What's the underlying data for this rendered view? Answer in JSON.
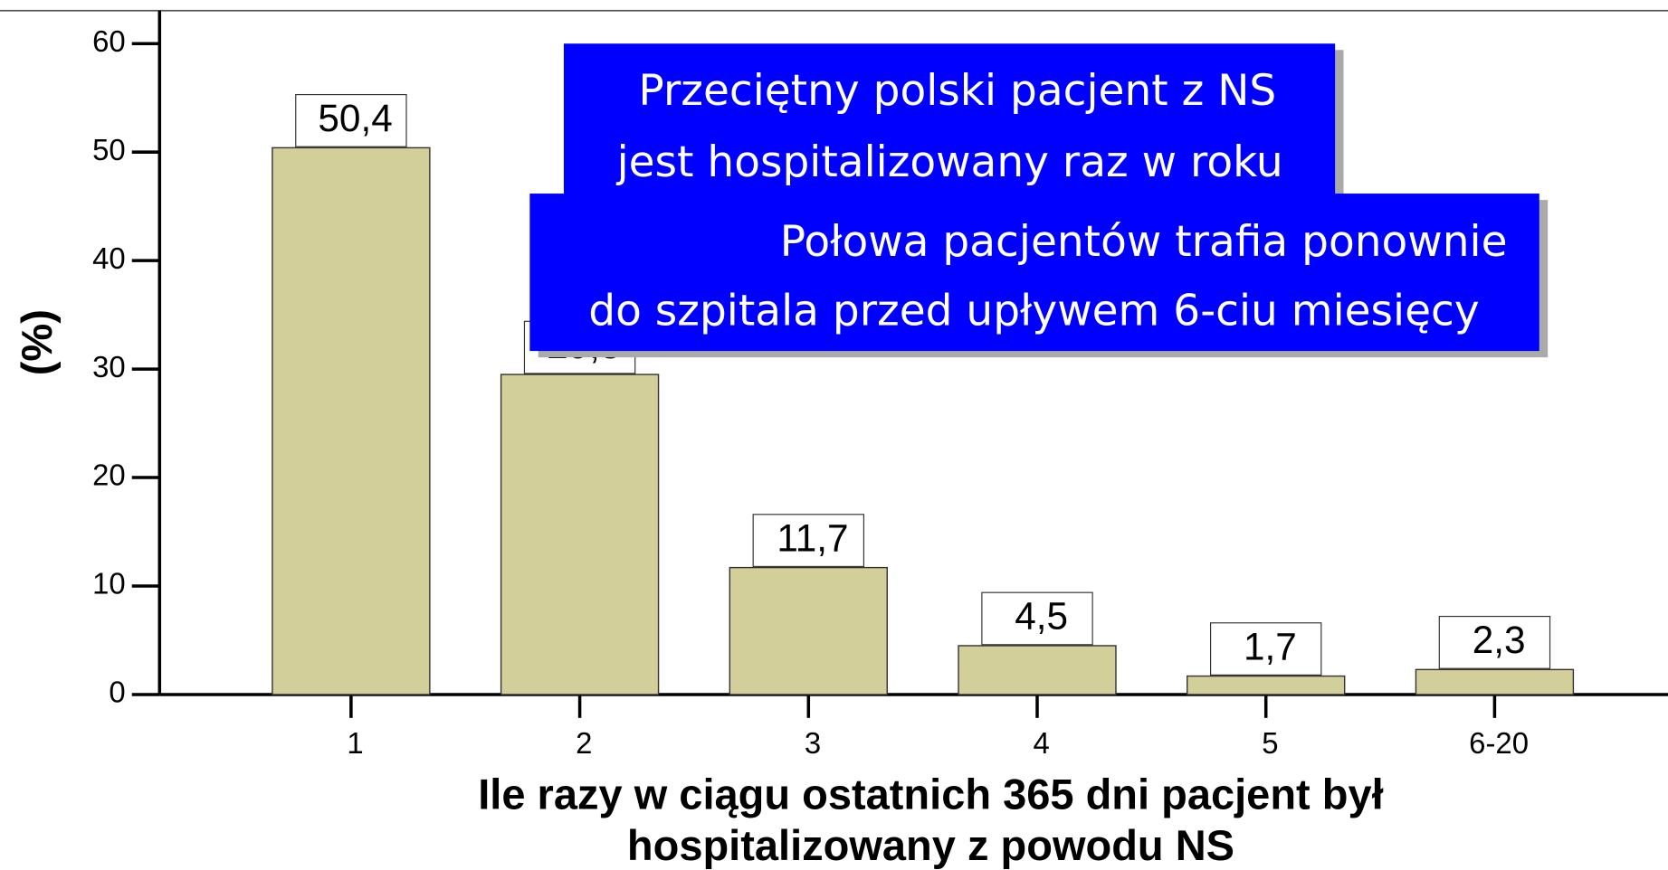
{
  "chart_data": {
    "type": "bar",
    "categories": [
      "1",
      "2",
      "3",
      "4",
      "5",
      "6-20"
    ],
    "values": [
      50.4,
      29.5,
      11.7,
      4.5,
      1.7,
      2.3
    ],
    "value_labels": [
      "50,4",
      "29,5",
      "11,7",
      "4,5",
      "1,7",
      "2,3"
    ],
    "color": "#d3cf9b",
    "ylim": [
      0,
      60
    ],
    "yticks": [
      0,
      10,
      20,
      30,
      40,
      50,
      60
    ],
    "ylabel": "(%)",
    "xlabel": [
      "Ile razy w ciągu ostatnich 365 dni pacjent był",
      "hospitalizowany z powodu NS"
    ],
    "annotations": [
      {
        "lines": [
          "Przeciętny polski pacjent z NS",
          "jest hospitalizowany raz w roku"
        ],
        "color": "#0000ff"
      },
      {
        "lines": [
          "Połowa pacjentów trafia ponownie",
          "do szpitala przed upływem 6-ciu miesięcy"
        ],
        "color": "#0000ff"
      }
    ]
  }
}
